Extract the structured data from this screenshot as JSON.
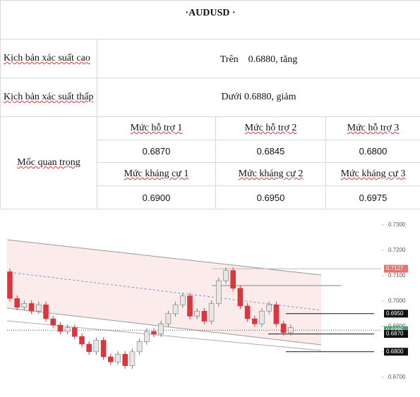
{
  "header": {
    "title": "·AUDUSD ·"
  },
  "scenarios": [
    {
      "label": "Kịch bản xác suất cao",
      "text": "Trên　0.6880, tăng"
    },
    {
      "label": "Kịch bản xác suất thấp",
      "text": "Dưới 0.6880, giảm"
    }
  ],
  "levels": {
    "label": "Mốc quan trọng",
    "support_headers": [
      "Mức hỗ trợ 1",
      "Mức hỗ trợ 2",
      "Mức hỗ trợ 3"
    ],
    "support_values": [
      "0.6870",
      "0.6845",
      "0.6800"
    ],
    "resistance_headers": [
      "Mức kháng cự 1",
      "Mức kháng cự 2",
      "Mức kháng cự 3"
    ],
    "resistance_values": [
      "0.6900",
      "0.6950",
      "0.6975"
    ]
  },
  "chart": {
    "type": "candlestick",
    "up_color": "#e6e6e6",
    "down_color": "#d9363e",
    "ylim": [
      0.6655,
      0.7355
    ],
    "yticks": [
      {
        "value": 0.73,
        "label": "0.7300"
      },
      {
        "value": 0.72,
        "label": "0.7200"
      },
      {
        "value": 0.71,
        "label": "0.7100"
      },
      {
        "value": 0.7,
        "label": "0.7000"
      },
      {
        "value": 0.69,
        "label": "0.6900"
      },
      {
        "value": 0.68,
        "label": "0.6800"
      },
      {
        "value": 0.67,
        "label": "0.6700"
      }
    ],
    "price_tags": [
      {
        "value": 0.7127,
        "label": "0.7127",
        "color": "#e57373"
      },
      {
        "value": 0.695,
        "label": "0.6950",
        "color": "#111111"
      },
      {
        "value": 0.6885,
        "label": "0.6885",
        "color": "#4e9a6e"
      },
      {
        "value": 0.687,
        "label": "0.6870",
        "color": "#111111"
      },
      {
        "value": 0.68,
        "label": "0.6800",
        "color": "#111111"
      }
    ],
    "candles": [
      [
        0.7115,
        0.7127,
        0.6998,
        0.701
      ],
      [
        0.701,
        0.7022,
        0.6963,
        0.6975
      ],
      [
        0.6975,
        0.7002,
        0.6963,
        0.699
      ],
      [
        0.699,
        0.7002,
        0.6948,
        0.696
      ],
      [
        0.696,
        0.6997,
        0.6948,
        0.6985
      ],
      [
        0.6985,
        0.6997,
        0.6918,
        0.693
      ],
      [
        0.693,
        0.6942,
        0.6893,
        0.6905
      ],
      [
        0.6905,
        0.6917,
        0.6868,
        0.688
      ],
      [
        0.688,
        0.6907,
        0.6868,
        0.6895
      ],
      [
        0.6895,
        0.6907,
        0.6848,
        0.686
      ],
      [
        0.686,
        0.6872,
        0.6818,
        0.683
      ],
      [
        0.683,
        0.6842,
        0.6788,
        0.68
      ],
      [
        0.68,
        0.6857,
        0.6788,
        0.6845
      ],
      [
        0.6845,
        0.6857,
        0.6768,
        0.678
      ],
      [
        0.678,
        0.6792,
        0.6748,
        0.676
      ],
      [
        0.676,
        0.6802,
        0.6748,
        0.679
      ],
      [
        0.679,
        0.6802,
        0.6733,
        0.6745
      ],
      [
        0.6745,
        0.6812,
        0.6733,
        0.68
      ],
      [
        0.68,
        0.6852,
        0.6788,
        0.684
      ],
      [
        0.684,
        0.6892,
        0.6828,
        0.688
      ],
      [
        0.688,
        0.6892,
        0.6858,
        0.687
      ],
      [
        0.687,
        0.6922,
        0.6858,
        0.691
      ],
      [
        0.691,
        0.6962,
        0.6898,
        0.695
      ],
      [
        0.695,
        0.6997,
        0.6938,
        0.6985
      ],
      [
        0.6985,
        0.7032,
        0.6973,
        0.702
      ],
      [
        0.702,
        0.7032,
        0.6928,
        0.694
      ],
      [
        0.694,
        0.6972,
        0.6928,
        0.696
      ],
      [
        0.696,
        0.6972,
        0.6908,
        0.692
      ],
      [
        0.692,
        0.7002,
        0.6908,
        0.699
      ],
      [
        0.699,
        0.7092,
        0.6978,
        0.708
      ],
      [
        0.708,
        0.7132,
        0.7068,
        0.712
      ],
      [
        0.712,
        0.7132,
        0.7038,
        0.705
      ],
      [
        0.705,
        0.7062,
        0.6968,
        0.698
      ],
      [
        0.698,
        0.6992,
        0.6918,
        0.693
      ],
      [
        0.693,
        0.6942,
        0.6898,
        0.691
      ],
      [
        0.691,
        0.6972,
        0.6898,
        0.696
      ],
      [
        0.696,
        0.6997,
        0.6948,
        0.6985
      ],
      [
        0.6985,
        0.6997,
        0.6898,
        0.691
      ],
      [
        0.691,
        0.6922,
        0.6863,
        0.6875
      ],
      [
        0.6875,
        0.6907,
        0.6863,
        0.6895
      ]
    ]
  }
}
